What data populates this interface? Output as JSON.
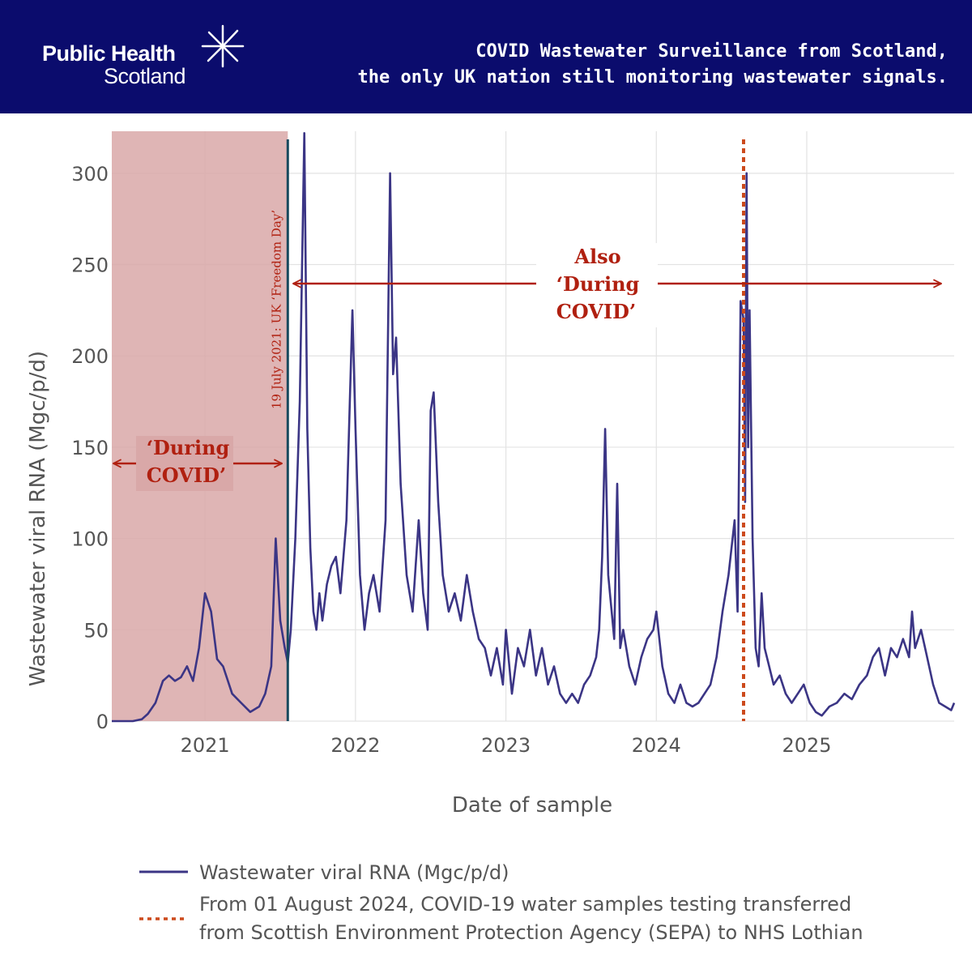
{
  "header": {
    "logo_line1": "Public Health",
    "logo_line2": "Scotland",
    "title_line1": "COVID Wastewater Surveillance from Scotland,",
    "title_line2": "the only UK nation still monitoring wastewater signals.",
    "background": "#0b0c6d"
  },
  "chart_data": {
    "type": "line",
    "xlabel": "Date of sample",
    "ylabel": "Wastewater viral RNA (Mgc/p/d)",
    "ylim": [
      0,
      323
    ],
    "xlim": [
      2020.38,
      2025.98
    ],
    "yticks": [
      0,
      50,
      100,
      150,
      200,
      250,
      300
    ],
    "xticks": [
      {
        "value": 2021,
        "label": "2021"
      },
      {
        "value": 2022,
        "label": "2022"
      },
      {
        "value": 2023,
        "label": "2023"
      },
      {
        "value": 2024,
        "label": "2024"
      },
      {
        "value": 2025,
        "label": "2025"
      }
    ],
    "grid": true,
    "series": [
      {
        "name": "Wastewater viral RNA (Mgc/p/d)",
        "color": "#3b3585",
        "x": [
          2020.38,
          2020.45,
          2020.52,
          2020.58,
          2020.62,
          2020.67,
          2020.72,
          2020.76,
          2020.8,
          2020.84,
          2020.88,
          2020.92,
          2020.96,
          2021.0,
          2021.04,
          2021.08,
          2021.12,
          2021.18,
          2021.24,
          2021.3,
          2021.36,
          2021.4,
          2021.44,
          2021.47,
          2021.5,
          2021.53,
          2021.55,
          2021.57,
          2021.6,
          2021.63,
          2021.66,
          2021.68,
          2021.7,
          2021.72,
          2021.74,
          2021.76,
          2021.78,
          2021.81,
          2021.84,
          2021.87,
          2021.9,
          2021.94,
          2021.98,
          2022.0,
          2022.03,
          2022.06,
          2022.09,
          2022.12,
          2022.16,
          2022.2,
          2022.23,
          2022.25,
          2022.27,
          2022.3,
          2022.34,
          2022.38,
          2022.42,
          2022.45,
          2022.48,
          2022.5,
          2022.52,
          2022.55,
          2022.58,
          2022.62,
          2022.66,
          2022.7,
          2022.74,
          2022.78,
          2022.82,
          2022.86,
          2022.9,
          2022.94,
          2022.98,
          2023.0,
          2023.04,
          2023.08,
          2023.12,
          2023.16,
          2023.2,
          2023.24,
          2023.28,
          2023.32,
          2023.36,
          2023.4,
          2023.44,
          2023.48,
          2023.52,
          2023.56,
          2023.6,
          2023.62,
          2023.64,
          2023.66,
          2023.68,
          2023.72,
          2023.74,
          2023.76,
          2023.78,
          2023.82,
          2023.86,
          2023.9,
          2023.94,
          2023.98,
          2024.0,
          2024.04,
          2024.08,
          2024.12,
          2024.16,
          2024.2,
          2024.24,
          2024.28,
          2024.32,
          2024.36,
          2024.4,
          2024.44,
          2024.48,
          2024.52,
          2024.54,
          2024.56,
          2024.58,
          2024.59,
          2024.6,
          2024.61,
          2024.62,
          2024.64,
          2024.66,
          2024.68,
          2024.7,
          2024.72,
          2024.75,
          2024.78,
          2024.82,
          2024.86,
          2024.9,
          2024.94,
          2024.98,
          2025.02,
          2025.06,
          2025.1,
          2025.15,
          2025.2,
          2025.25,
          2025.3,
          2025.35,
          2025.4,
          2025.44,
          2025.48,
          2025.52,
          2025.56,
          2025.6,
          2025.64,
          2025.68,
          2025.7,
          2025.72,
          2025.76,
          2025.8,
          2025.84,
          2025.88,
          2025.92,
          2025.96,
          2025.98
        ],
        "y": [
          0,
          0,
          0,
          1,
          4,
          10,
          22,
          25,
          22,
          24,
          30,
          22,
          40,
          70,
          60,
          34,
          30,
          15,
          10,
          5,
          8,
          15,
          30,
          100,
          55,
          40,
          32,
          50,
          100,
          175,
          322,
          160,
          95,
          60,
          50,
          70,
          55,
          75,
          85,
          90,
          70,
          110,
          225,
          160,
          80,
          50,
          70,
          80,
          60,
          110,
          300,
          190,
          210,
          130,
          80,
          60,
          110,
          70,
          50,
          170,
          180,
          120,
          80,
          60,
          70,
          55,
          80,
          60,
          45,
          40,
          25,
          40,
          20,
          50,
          15,
          40,
          30,
          50,
          25,
          40,
          20,
          30,
          15,
          10,
          15,
          10,
          20,
          25,
          35,
          50,
          90,
          160,
          80,
          45,
          130,
          40,
          50,
          30,
          20,
          35,
          45,
          50,
          60,
          30,
          15,
          10,
          20,
          10,
          8,
          10,
          15,
          20,
          35,
          60,
          80,
          110,
          60,
          230,
          220,
          120,
          300,
          150,
          225,
          100,
          40,
          30,
          70,
          40,
          30,
          20,
          25,
          15,
          10,
          15,
          20,
          10,
          5,
          3,
          8,
          10,
          15,
          12,
          20,
          25,
          35,
          40,
          25,
          40,
          35,
          45,
          35,
          60,
          40,
          50,
          35,
          20,
          10,
          8,
          6,
          10
        ]
      }
    ],
    "shaded_region": {
      "x_start": 2020.38,
      "x_end": 2021.55,
      "color": "#d9a8a8"
    },
    "vertical_lines": [
      {
        "x": 2021.55,
        "label": "19 July 2021: UK ‘Freedom Day’",
        "color": "#17495e",
        "style": "solid"
      },
      {
        "x": 2024.58,
        "label": "",
        "color": "#cc4a1c",
        "style": "dotted"
      }
    ],
    "annotations": {
      "during_line1": "‘During",
      "during_line2": "COVID’",
      "also_line1": "Also",
      "also_line2": "‘During",
      "also_line3": "COVID’",
      "arrow_color": "#b02010"
    },
    "legend": [
      {
        "label": "Wastewater viral RNA (Mgc/p/d)",
        "color": "#3b3585",
        "style": "solid"
      },
      {
        "label_line1": "From 01 August 2024, COVID-19 water samples testing transferred",
        "label_line2": "from Scottish Environment Protection Agency (SEPA) to NHS Lothian",
        "color": "#cc4a1c",
        "style": "dotted"
      }
    ]
  }
}
